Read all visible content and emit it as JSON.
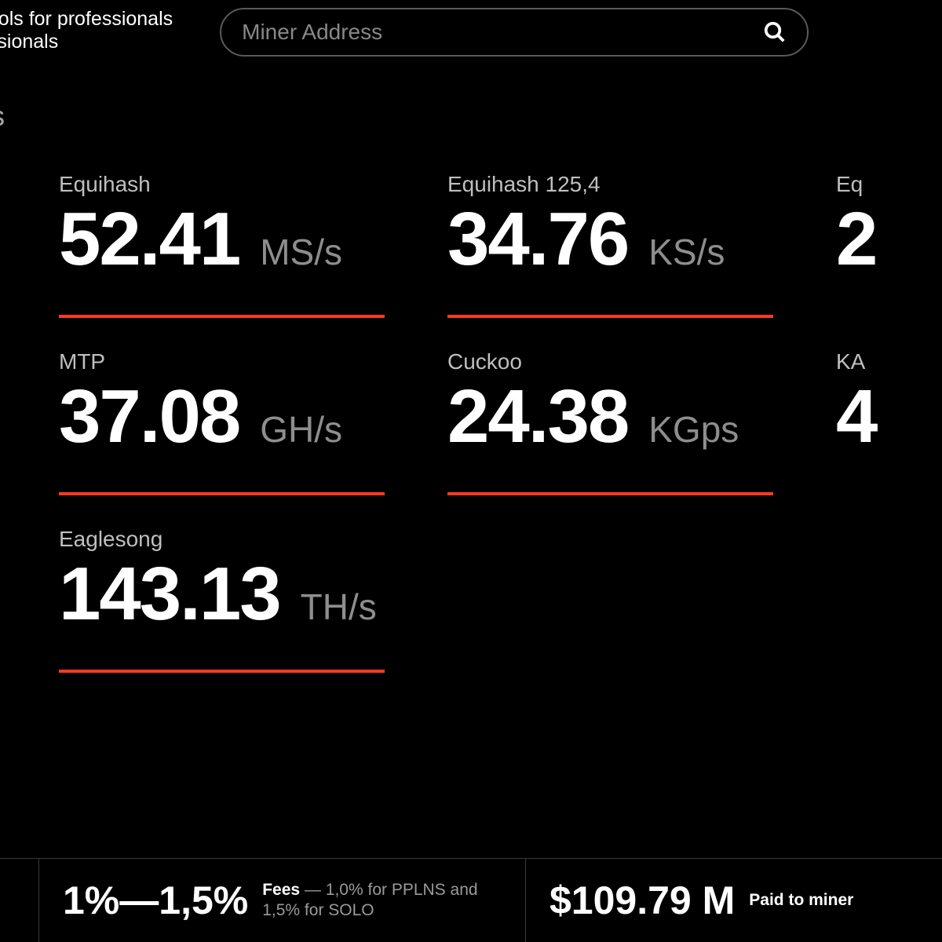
{
  "colors": {
    "background": "#000000",
    "text_primary": "#ffffff",
    "text_muted": "#8e8e8e",
    "text_label": "#bfbfbf",
    "accent": "#ff3b1f",
    "border": "#3a3a3a"
  },
  "header": {
    "tagline_line1": "pools for professionals",
    "tagline_line2": "essionals"
  },
  "search": {
    "placeholder": "Miner Address"
  },
  "section_title": "ls",
  "pools": [
    {
      "name": "Equihash",
      "value": "52.41",
      "unit": "MS/s",
      "underline": true
    },
    {
      "name": "Equihash 125,4",
      "value": "34.76",
      "unit": "KS/s",
      "underline": true
    },
    {
      "name": "Eq",
      "value": "2",
      "unit": "",
      "underline": false
    },
    {
      "name": "MTP",
      "value": "37.08",
      "unit": "GH/s",
      "underline": true
    },
    {
      "name": "Cuckoo",
      "value": "24.38",
      "unit": "KGps",
      "underline": true
    },
    {
      "name": "KA",
      "value": "4",
      "unit": "",
      "underline": false
    },
    {
      "name": "Eaglesong",
      "value": "143.13",
      "unit": "TH/s",
      "underline": true
    }
  ],
  "stats": {
    "fees": {
      "big": "1%—1,5%",
      "label": "Fees",
      "desc": " — 1,0% for PPLNS and 1,5% for SOLO"
    },
    "paid": {
      "big": "$109.79 M",
      "label": "Paid to miner"
    }
  }
}
